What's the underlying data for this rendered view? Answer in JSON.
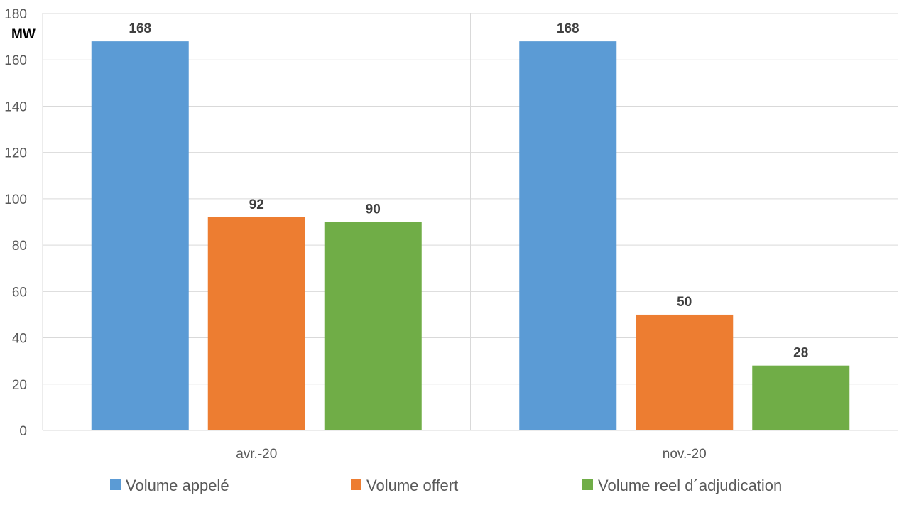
{
  "chart_data": {
    "type": "bar",
    "title": "",
    "ylabel": "MW",
    "xlabel": "",
    "ylim": [
      0,
      180
    ],
    "yticks": [
      0,
      20,
      40,
      60,
      80,
      100,
      120,
      140,
      160,
      180
    ],
    "categories": [
      "avr.-20",
      "nov.-20"
    ],
    "grid": true,
    "legend_position": "bottom",
    "series": [
      {
        "name": "Volume appelé",
        "color": "#5B9BD5",
        "values": [
          168,
          168
        ]
      },
      {
        "name": "Volume offert",
        "color": "#ED7D31",
        "values": [
          92,
          50
        ]
      },
      {
        "name": "Volume reel d´adjudication",
        "color": "#70AD47",
        "values": [
          90,
          28
        ]
      }
    ]
  }
}
